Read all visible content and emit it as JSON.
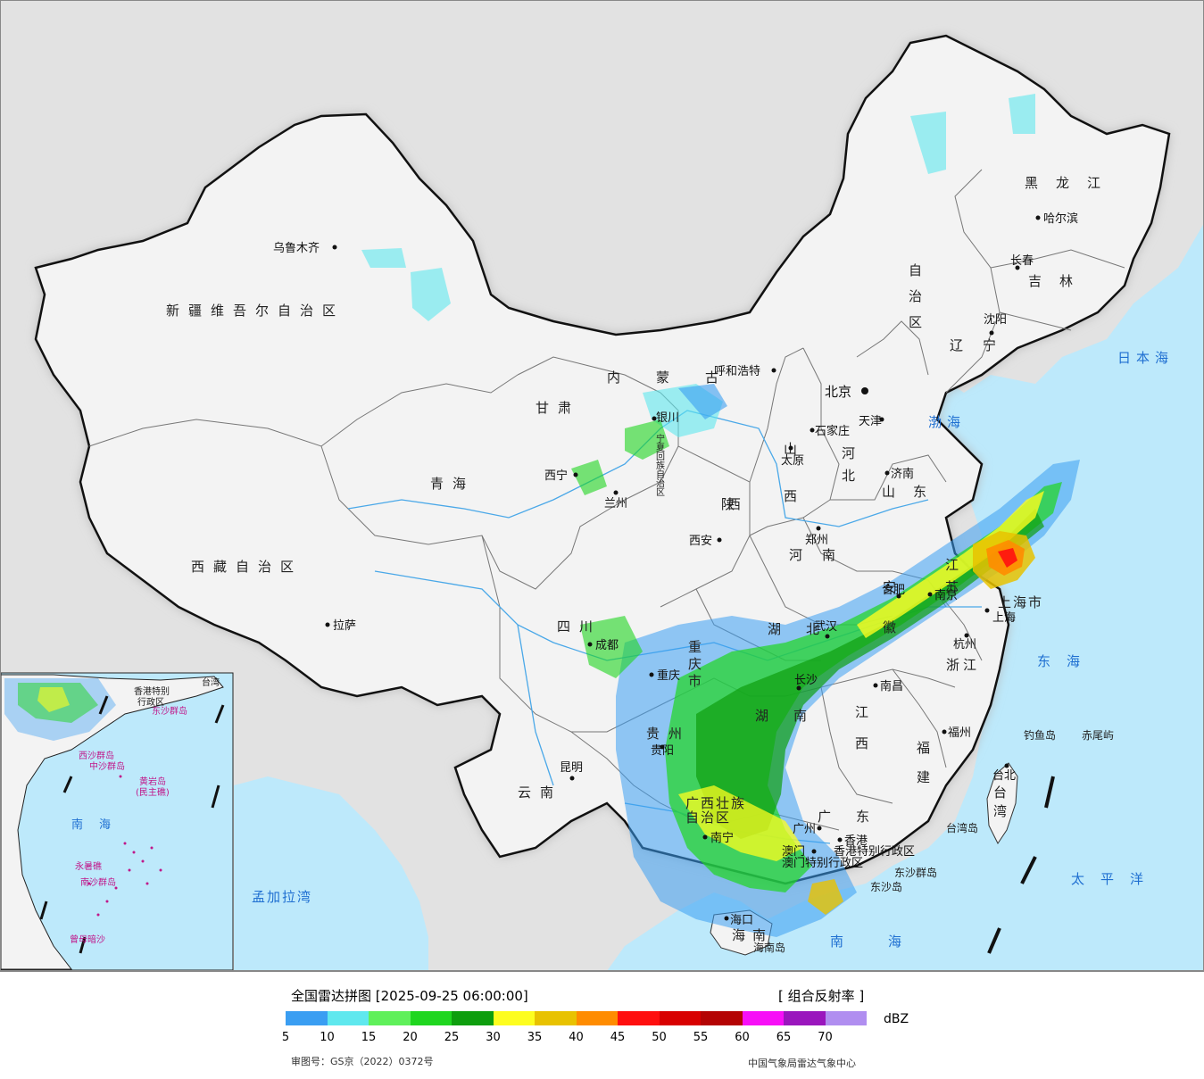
{
  "map": {
    "provinces": [
      {
        "name": "新疆维吾尔自治区"
      },
      {
        "name": "西藏自治区"
      },
      {
        "name": "青海"
      },
      {
        "name": "甘肃"
      },
      {
        "name": "四川"
      },
      {
        "name": "云南"
      },
      {
        "name": "贵州"
      },
      {
        "name": "广西壮族"
      },
      {
        "name": "自治区"
      },
      {
        "name": "内蒙古"
      },
      {
        "name": "自治区"
      },
      {
        "name": "黑龙江"
      },
      {
        "name": "吉林"
      },
      {
        "name": "辽宁"
      },
      {
        "name": "河北"
      },
      {
        "name": "山西"
      },
      {
        "name": "陕西"
      },
      {
        "name": "河南"
      },
      {
        "name": "山东"
      },
      {
        "name": "安徽"
      },
      {
        "name": "江苏"
      },
      {
        "name": "湖北"
      },
      {
        "name": "湖南"
      },
      {
        "name": "江西"
      },
      {
        "name": "浙江"
      },
      {
        "name": "福建"
      },
      {
        "name": "广东"
      },
      {
        "name": "海南"
      },
      {
        "name": "台湾"
      },
      {
        "name": "重庆市"
      },
      {
        "name": "上海市"
      },
      {
        "name": "宁夏回族自治区"
      },
      {
        "name": "香港特别行政区"
      },
      {
        "name": "澳门特别行政区"
      }
    ],
    "cities": [
      {
        "name": "乌鲁木齐"
      },
      {
        "name": "拉萨"
      },
      {
        "name": "西宁"
      },
      {
        "name": "兰州"
      },
      {
        "name": "银川"
      },
      {
        "name": "成都"
      },
      {
        "name": "重庆"
      },
      {
        "name": "昆明"
      },
      {
        "name": "贵阳"
      },
      {
        "name": "南宁"
      },
      {
        "name": "呼和浩特"
      },
      {
        "name": "北京"
      },
      {
        "name": "天津"
      },
      {
        "name": "石家庄"
      },
      {
        "name": "太原"
      },
      {
        "name": "西安"
      },
      {
        "name": "郑州"
      },
      {
        "name": "济南"
      },
      {
        "name": "哈尔滨"
      },
      {
        "name": "长春"
      },
      {
        "name": "沈阳"
      },
      {
        "name": "合肥"
      },
      {
        "name": "南京"
      },
      {
        "name": "上海"
      },
      {
        "name": "杭州"
      },
      {
        "name": "武汉"
      },
      {
        "name": "长沙"
      },
      {
        "name": "南昌"
      },
      {
        "name": "福州"
      },
      {
        "name": "台北"
      },
      {
        "name": "广州"
      },
      {
        "name": "香港"
      },
      {
        "name": "澳门"
      },
      {
        "name": "海口"
      }
    ],
    "seas": [
      {
        "name": "渤海"
      },
      {
        "name": "日本海"
      },
      {
        "name": "东海"
      },
      {
        "name": "太平洋"
      },
      {
        "name": "南海"
      },
      {
        "name": "孟加拉湾"
      }
    ],
    "islands": [
      {
        "name": "钓鱼岛"
      },
      {
        "name": "赤尾屿"
      },
      {
        "name": "台湾岛"
      },
      {
        "name": "东沙群岛"
      },
      {
        "name": "东沙岛"
      },
      {
        "name": "海南岛"
      }
    ],
    "inset": {
      "sea": "南海",
      "labels": [
        {
          "name": "西沙群岛"
        },
        {
          "name": "中沙群岛"
        },
        {
          "name": "黄岩岛"
        },
        {
          "name": "(民主礁)"
        },
        {
          "name": "永暑礁"
        },
        {
          "name": "南沙群岛"
        },
        {
          "name": "曾母暗沙"
        },
        {
          "name": "东沙群岛"
        },
        {
          "name": "台湾"
        },
        {
          "name": "香港特别"
        },
        {
          "name": "行政区"
        }
      ]
    }
  },
  "legend": {
    "title": "全国雷达拼图 [2025-09-25 06:00:00]",
    "product": "[ 组合反射率 ]",
    "unit": "dBZ",
    "colors": [
      "#3a9ef2",
      "#5fe8ee",
      "#5ff05a",
      "#1fd61f",
      "#0e9e0e",
      "#fdfd1f",
      "#e8c200",
      "#ff8c00",
      "#ff0f0f",
      "#d80000",
      "#b40404",
      "#f70ff7",
      "#9a16bd",
      "#b08ef0"
    ],
    "ticks": [
      "5",
      "10",
      "15",
      "20",
      "25",
      "30",
      "35",
      "40",
      "45",
      "50",
      "55",
      "60",
      "65",
      "70"
    ],
    "approval": "审图号：GS京（2022）0372号",
    "agency": "中国气象局雷达气象中心"
  }
}
